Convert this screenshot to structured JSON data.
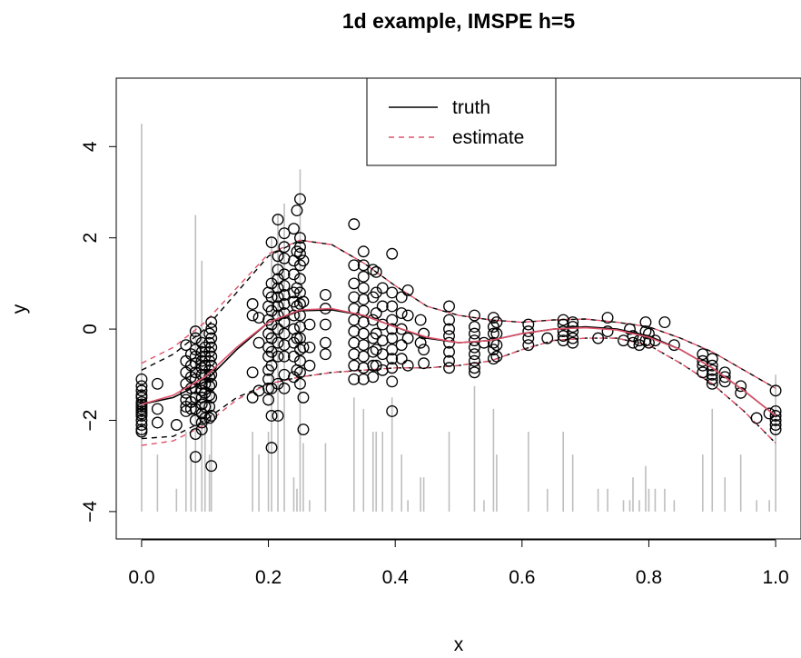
{
  "chart_data": {
    "type": "scatter",
    "title": "1d example, IMSPE h=5",
    "xlabel": "x",
    "ylabel": "y",
    "xlim": [
      -0.04,
      1.04
    ],
    "ylim": [
      -4.6,
      5.5
    ],
    "x_ticks": [
      0,
      0.2,
      0.4,
      0.6,
      0.8,
      1.0
    ],
    "x_tick_labels": [
      "0.0",
      "0.2",
      "0.4",
      "0.6",
      "0.8",
      "1.0"
    ],
    "y_ticks": [
      -4,
      -2,
      0,
      2,
      4
    ],
    "y_tick_labels": [
      "−4",
      "−2",
      "0",
      "2",
      "4"
    ],
    "legend": {
      "position": "top",
      "entries": [
        {
          "label": "truth",
          "color": "#000000",
          "dash": "solid"
        },
        {
          "label": "estimate",
          "color": "#DF536B",
          "dash": "dashed"
        }
      ]
    },
    "colors": {
      "points": "#000000",
      "truth": "#000000",
      "estimate": "#DF536B",
      "bands": "#000000",
      "replicate_bars": "#BEBEBE"
    },
    "truth_curve": {
      "x": [
        0,
        0.05,
        0.1,
        0.15,
        0.2,
        0.25,
        0.3,
        0.35,
        0.4,
        0.45,
        0.5,
        0.55,
        0.6,
        0.65,
        0.7,
        0.75,
        0.8,
        0.85,
        0.9,
        0.95,
        1.0
      ],
      "y": [
        -1.65,
        -1.5,
        -1.15,
        -0.45,
        0.15,
        0.4,
        0.42,
        0.3,
        0.05,
        -0.2,
        -0.3,
        -0.25,
        -0.1,
        0.0,
        0.05,
        0.0,
        -0.15,
        -0.45,
        -0.85,
        -1.35,
        -1.9
      ]
    },
    "estimate_curve": {
      "x": [
        0,
        0.05,
        0.1,
        0.15,
        0.2,
        0.25,
        0.3,
        0.35,
        0.4,
        0.45,
        0.5,
        0.55,
        0.6,
        0.65,
        0.7,
        0.75,
        0.8,
        0.85,
        0.9,
        0.95,
        1.0
      ],
      "y": [
        -1.65,
        -1.45,
        -1.05,
        -0.4,
        0.15,
        0.42,
        0.45,
        0.3,
        0.05,
        -0.18,
        -0.3,
        -0.25,
        -0.1,
        0.0,
        0.03,
        -0.02,
        -0.18,
        -0.45,
        -0.85,
        -1.35,
        -1.9
      ]
    },
    "band_upper_truth": {
      "x": [
        0,
        0.05,
        0.1,
        0.15,
        0.2,
        0.25,
        0.3,
        0.35,
        0.4,
        0.45,
        0.5,
        0.55,
        0.6,
        0.65,
        0.7,
        0.75,
        0.8,
        0.85,
        0.9,
        0.95,
        1.0
      ],
      "y": [
        -0.9,
        -0.55,
        0.0,
        0.8,
        1.6,
        1.95,
        1.85,
        1.45,
        0.95,
        0.5,
        0.3,
        0.2,
        0.15,
        0.2,
        0.22,
        0.15,
        0.05,
        -0.2,
        -0.5,
        -0.9,
        -1.3
      ]
    },
    "band_lower_truth": {
      "x": [
        0,
        0.05,
        0.1,
        0.15,
        0.2,
        0.25,
        0.3,
        0.35,
        0.4,
        0.45,
        0.5,
        0.55,
        0.6,
        0.65,
        0.7,
        0.75,
        0.8,
        0.85,
        0.9,
        0.95,
        1.0
      ],
      "y": [
        -2.4,
        -2.35,
        -2.0,
        -1.5,
        -1.2,
        -1.05,
        -0.95,
        -0.9,
        -0.85,
        -0.85,
        -0.8,
        -0.7,
        -0.45,
        -0.25,
        -0.2,
        -0.2,
        -0.35,
        -0.75,
        -1.2,
        -1.8,
        -2.5
      ]
    },
    "band_upper_estimate": {
      "x": [
        0,
        0.05,
        0.1,
        0.15,
        0.2,
        0.25,
        0.3,
        0.35,
        0.4,
        0.45,
        0.5,
        0.55,
        0.6,
        0.65,
        0.7,
        0.75,
        0.8,
        0.85,
        0.9,
        0.95,
        1.0
      ],
      "y": [
        -0.75,
        -0.4,
        0.15,
        0.9,
        1.65,
        1.95,
        1.85,
        1.45,
        0.95,
        0.5,
        0.3,
        0.2,
        0.15,
        0.2,
        0.22,
        0.15,
        0.05,
        -0.2,
        -0.5,
        -0.9,
        -1.3
      ]
    },
    "band_lower_estimate": {
      "x": [
        0,
        0.05,
        0.1,
        0.15,
        0.2,
        0.25,
        0.3,
        0.35,
        0.4,
        0.45,
        0.5,
        0.55,
        0.6,
        0.65,
        0.7,
        0.75,
        0.8,
        0.85,
        0.9,
        0.95,
        1.0
      ],
      "y": [
        -2.55,
        -2.45,
        -2.1,
        -1.55,
        -1.2,
        -1.05,
        -0.95,
        -0.9,
        -0.85,
        -0.85,
        -0.8,
        -0.7,
        -0.45,
        -0.25,
        -0.2,
        -0.2,
        -0.35,
        -0.75,
        -1.2,
        -1.8,
        -2.5
      ]
    },
    "replicate_bars": {
      "x": [
        0.0,
        0.025,
        0.055,
        0.07,
        0.078,
        0.085,
        0.095,
        0.1,
        0.107,
        0.11,
        0.175,
        0.185,
        0.2,
        0.205,
        0.215,
        0.225,
        0.24,
        0.245,
        0.25,
        0.255,
        0.265,
        0.29,
        0.335,
        0.35,
        0.365,
        0.37,
        0.38,
        0.395,
        0.41,
        0.42,
        0.44,
        0.445,
        0.485,
        0.525,
        0.54,
        0.555,
        0.56,
        0.61,
        0.64,
        0.665,
        0.68,
        0.72,
        0.735,
        0.76,
        0.77,
        0.775,
        0.785,
        0.795,
        0.8,
        0.81,
        0.825,
        0.84,
        0.885,
        0.9,
        0.92,
        0.945,
        0.97,
        0.99,
        1.0
      ],
      "y_top": [
        4.5,
        -2.75,
        -3.5,
        -2.25,
        -2.75,
        2.5,
        1.5,
        -1.5,
        -2.75,
        -1.0,
        -2.25,
        -2.75,
        -2.25,
        2.0,
        2.5,
        2.75,
        -3.25,
        -3.5,
        3.5,
        -2.5,
        -3.75,
        -2.5,
        -1.5,
        -1.75,
        -2.25,
        -2.25,
        -2.25,
        -1.5,
        -2.75,
        -3.75,
        -3.25,
        -3.25,
        -2.25,
        -1.25,
        -3.75,
        -1.75,
        -2.75,
        -2.25,
        -3.5,
        -2.25,
        -2.75,
        -3.5,
        -3.5,
        -3.75,
        -3.75,
        -3.25,
        -3.75,
        -3.0,
        -3.5,
        -3.5,
        -3.5,
        -3.75,
        -2.75,
        -1.75,
        -3.25,
        -2.75,
        -3.75,
        -3.75,
        -1.0
      ]
    },
    "points": {
      "x": [
        0,
        0,
        0,
        0,
        0,
        0,
        0,
        0,
        0,
        0,
        0,
        0,
        0,
        0,
        0,
        0,
        0.025,
        0.025,
        0.025,
        0.055,
        0.07,
        0.07,
        0.07,
        0.07,
        0.07,
        0.07,
        0.07,
        0.07,
        0.078,
        0.078,
        0.078,
        0.078,
        0.078,
        0.078,
        0.085,
        0.085,
        0.085,
        0.085,
        0.085,
        0.085,
        0.085,
        0.085,
        0.085,
        0.085,
        0.085,
        0.085,
        0.085,
        0.095,
        0.095,
        0.095,
        0.095,
        0.095,
        0.095,
        0.095,
        0.095,
        0.095,
        0.095,
        0.095,
        0.095,
        0.1,
        0.1,
        0.1,
        0.1,
        0.1,
        0.1,
        0.1,
        0.1,
        0.107,
        0.107,
        0.107,
        0.107,
        0.107,
        0.107,
        0.107,
        0.107,
        0.107,
        0.107,
        0.11,
        0.11,
        0.11,
        0.11,
        0.11,
        0.11,
        0.11,
        0.11,
        0.11,
        0.11,
        0.11,
        0.175,
        0.175,
        0.175,
        0.175,
        0.185,
        0.185,
        0.185,
        0.2,
        0.2,
        0.2,
        0.2,
        0.2,
        0.2,
        0.2,
        0.2,
        0.2,
        0.2,
        0.205,
        0.205,
        0.205,
        0.205,
        0.205,
        0.205,
        0.205,
        0.205,
        0.205,
        0.205,
        0.205,
        0.215,
        0.215,
        0.215,
        0.215,
        0.215,
        0.215,
        0.215,
        0.215,
        0.215,
        0.215,
        0.215,
        0.215,
        0.215,
        0.225,
        0.225,
        0.225,
        0.225,
        0.225,
        0.225,
        0.225,
        0.225,
        0.225,
        0.225,
        0.225,
        0.225,
        0.225,
        0.225,
        0.24,
        0.24,
        0.24,
        0.24,
        0.24,
        0.24,
        0.24,
        0.24,
        0.24,
        0.24,
        0.245,
        0.245,
        0.245,
        0.245,
        0.245,
        0.245,
        0.25,
        0.25,
        0.25,
        0.25,
        0.25,
        0.25,
        0.25,
        0.25,
        0.25,
        0.25,
        0.25,
        0.25,
        0.25,
        0.25,
        0.25,
        0.255,
        0.255,
        0.255,
        0.255,
        0.255,
        0.265,
        0.265,
        0.265,
        0.29,
        0.29,
        0.29,
        0.29,
        0.29,
        0.335,
        0.335,
        0.335,
        0.335,
        0.335,
        0.335,
        0.335,
        0.335,
        0.335,
        0.335,
        0.335,
        0.35,
        0.35,
        0.35,
        0.35,
        0.35,
        0.35,
        0.35,
        0.35,
        0.35,
        0.35,
        0.35,
        0.35,
        0.365,
        0.365,
        0.365,
        0.365,
        0.365,
        0.365,
        0.365,
        0.37,
        0.37,
        0.37,
        0.37,
        0.37,
        0.37,
        0.38,
        0.38,
        0.38,
        0.38,
        0.38,
        0.38,
        0.395,
        0.395,
        0.395,
        0.395,
        0.395,
        0.395,
        0.395,
        0.395,
        0.395,
        0.395,
        0.395,
        0.41,
        0.41,
        0.41,
        0.41,
        0.41,
        0.42,
        0.42,
        0.42,
        0.42,
        0.44,
        0.44,
        0.445,
        0.445,
        0.445,
        0.485,
        0.485,
        0.485,
        0.485,
        0.485,
        0.485,
        0.485,
        0.485,
        0.525,
        0.525,
        0.525,
        0.525,
        0.525,
        0.525,
        0.525,
        0.525,
        0.525,
        0.54,
        0.555,
        0.555,
        0.555,
        0.555,
        0.555,
        0.555,
        0.56,
        0.56,
        0.56,
        0.56,
        0.61,
        0.61,
        0.61,
        0.61,
        0.64,
        0.665,
        0.665,
        0.665,
        0.665,
        0.665,
        0.68,
        0.68,
        0.68,
        0.68,
        0.68,
        0.72,
        0.735,
        0.735,
        0.76,
        0.77,
        0.775,
        0.775,
        0.785,
        0.785,
        0.795,
        0.795,
        0.795,
        0.8,
        0.8,
        0.81,
        0.825,
        0.84,
        0.885,
        0.885,
        0.885,
        0.885,
        0.9,
        0.9,
        0.9,
        0.9,
        0.9,
        0.9,
        0.92,
        0.92,
        0.92,
        0.945,
        0.945,
        0.97,
        0.99,
        1,
        1,
        1,
        1,
        1,
        1
      ],
      "y": [
        -1.1,
        -1.25,
        -1.35,
        -1.45,
        -1.5,
        -1.6,
        -1.65,
        -1.7,
        -1.75,
        -1.8,
        -1.85,
        -1.9,
        -2.0,
        -2.1,
        -2.2,
        -2.25,
        -1.2,
        -1.75,
        -2.05,
        -2.1,
        -0.35,
        -0.7,
        -0.95,
        -1.2,
        -1.4,
        -1.55,
        -1.7,
        -1.8,
        -0.55,
        -0.8,
        -1.05,
        -1.3,
        -1.6,
        -1.75,
        -0.05,
        -0.2,
        -0.45,
        -0.6,
        -0.75,
        -0.95,
        -1.1,
        -1.3,
        -1.5,
        -1.75,
        -2.0,
        -2.3,
        -2.8,
        -0.3,
        -0.5,
        -0.7,
        -0.85,
        -1.0,
        -1.2,
        -1.35,
        -1.5,
        -1.65,
        -1.85,
        -2.05,
        -2.2,
        -0.4,
        -0.6,
        -0.8,
        -1.0,
        -1.2,
        -1.4,
        -1.7,
        -1.95,
        -0.1,
        -0.3,
        -0.5,
        -0.7,
        -0.9,
        -1.05,
        -1.25,
        -1.45,
        -1.7,
        -1.95,
        0.15,
        0.0,
        -0.2,
        -0.4,
        -0.6,
        -0.8,
        -1.0,
        -1.2,
        -1.5,
        -1.9,
        -3.0,
        0.55,
        0.3,
        -0.95,
        -1.5,
        0.25,
        -0.3,
        -1.35,
        0.8,
        0.5,
        0.2,
        -0.1,
        -0.4,
        -0.6,
        -0.9,
        -1.1,
        -1.3,
        -1.55,
        1.9,
        1.0,
        0.7,
        0.4,
        0.1,
        -0.2,
        -0.5,
        -0.8,
        -1.3,
        -1.9,
        -2.6,
        2.4,
        1.6,
        1.3,
        1.1,
        0.9,
        0.7,
        0.5,
        0.3,
        0.0,
        -0.3,
        -0.6,
        -1.2,
        -1.9,
        2.1,
        1.8,
        1.55,
        1.2,
        0.95,
        0.75,
        0.55,
        0.35,
        0.15,
        -0.1,
        -0.35,
        -0.6,
        -1.0,
        -1.3,
        2.2,
        1.5,
        1.2,
        0.8,
        0.6,
        0.3,
        0.0,
        -0.3,
        -0.6,
        -1.05,
        2.6,
        1.7,
        0.9,
        0.5,
        -0.2,
        -0.9,
        2.85,
        2.0,
        1.8,
        1.65,
        1.4,
        1.1,
        0.8,
        0.55,
        0.3,
        0.05,
        -0.2,
        -0.45,
        -0.7,
        -0.95,
        -1.2,
        1.5,
        0.6,
        -0.4,
        -1.5,
        -2.2,
        0.1,
        -0.4,
        -0.8,
        0.75,
        0.45,
        0.1,
        -0.3,
        -0.55,
        2.3,
        1.4,
        1.0,
        0.7,
        0.45,
        0.2,
        -0.05,
        -0.3,
        -0.55,
        -0.8,
        -1.1,
        1.7,
        1.4,
        1.15,
        0.9,
        0.65,
        0.4,
        0.15,
        -0.1,
        -0.35,
        -0.6,
        -0.85,
        -1.1,
        1.3,
        0.7,
        0.2,
        -0.2,
        -0.5,
        -0.8,
        -1.05,
        1.25,
        0.8,
        0.35,
        -0.1,
        -0.45,
        -0.8,
        0.9,
        0.5,
        0.1,
        -0.25,
        -0.55,
        -0.9,
        1.65,
        0.8,
        0.5,
        0.2,
        0.0,
        -0.2,
        -0.45,
        -0.65,
        -0.85,
        -1.15,
        -1.8,
        0.7,
        0.35,
        0.0,
        -0.35,
        -0.65,
        0.85,
        0.3,
        -0.2,
        -0.8,
        0.2,
        -0.3,
        -0.1,
        -0.45,
        -0.75,
        0.5,
        0.2,
        0.0,
        -0.15,
        -0.3,
        -0.5,
        -0.7,
        -0.85,
        0.3,
        0.05,
        -0.1,
        -0.25,
        -0.4,
        -0.55,
        -0.7,
        -0.85,
        -0.95,
        -0.3,
        0.25,
        0.05,
        -0.1,
        -0.3,
        -0.45,
        -0.65,
        0.15,
        -0.1,
        -0.35,
        -0.6,
        0.1,
        -0.05,
        -0.2,
        -0.35,
        -0.2,
        0.2,
        0.1,
        -0.05,
        -0.15,
        -0.25,
        0.15,
        0.05,
        -0.05,
        -0.2,
        -0.3,
        -0.2,
        0.25,
        -0.05,
        -0.25,
        0.0,
        -0.3,
        -0.15,
        -0.25,
        -0.35,
        0.15,
        -0.05,
        -0.25,
        -0.1,
        -0.3,
        -0.25,
        0.15,
        -0.35,
        -0.55,
        -0.7,
        -0.8,
        -0.95,
        -0.65,
        -0.8,
        -0.9,
        -1.0,
        -1.1,
        -1.2,
        -0.95,
        -1.05,
        -1.15,
        -1.25,
        -1.4,
        -1.95,
        -1.85,
        -1.35,
        -1.8,
        -1.9,
        -2.0,
        -2.1,
        -2.2
      ]
    }
  }
}
